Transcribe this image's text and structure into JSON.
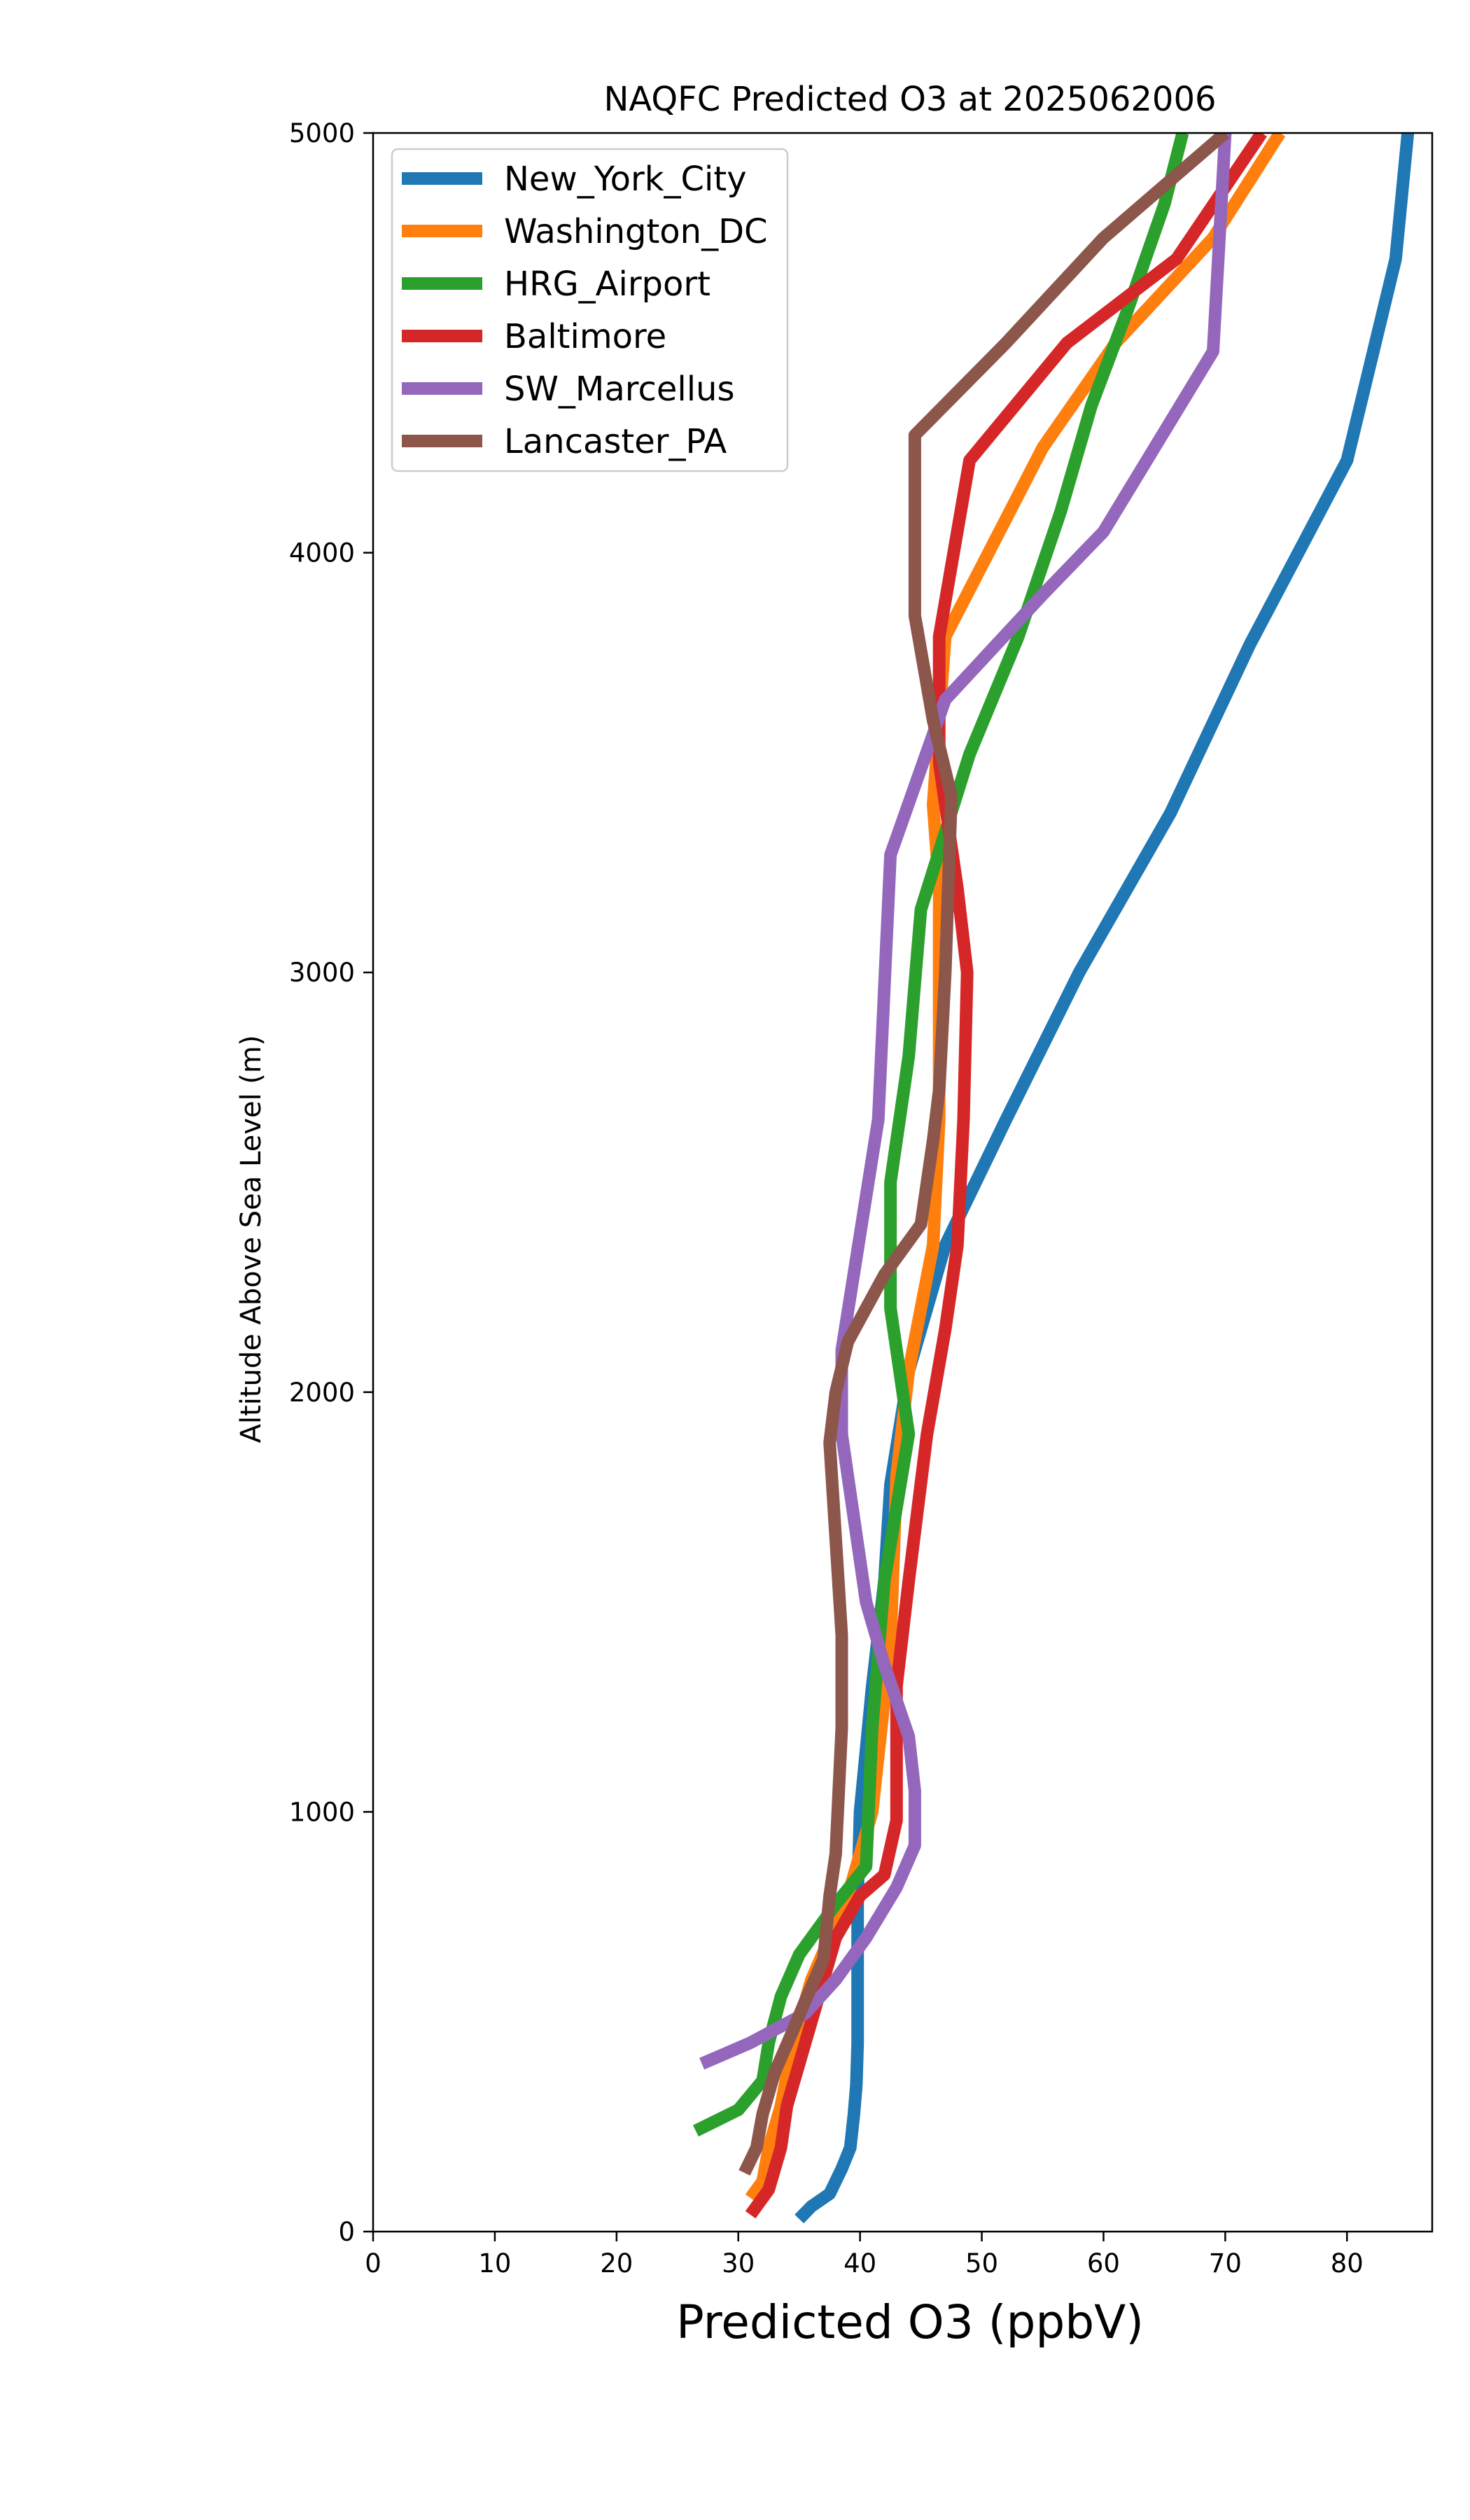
{
  "chart_data": {
    "type": "line",
    "title": "NAQFC Predicted O3 at 2025062006",
    "xlabel": "Predicted O3 (ppbV)",
    "ylabel": "Altitude Above Sea Level (m)",
    "xlim": [
      0,
      87
    ],
    "ylim": [
      0,
      5000
    ],
    "xticks": [
      0,
      10,
      20,
      30,
      40,
      50,
      60,
      70,
      80
    ],
    "yticks": [
      0,
      1000,
      2000,
      3000,
      4000,
      5000
    ],
    "grid": false,
    "legend": "top-left",
    "series": [
      {
        "name": "New_York_City",
        "color": "#1f77b4",
        "points": [
          [
            35,
            30
          ],
          [
            36,
            60
          ],
          [
            37.5,
            90
          ],
          [
            38.5,
            150
          ],
          [
            39.2,
            200
          ],
          [
            39.5,
            280
          ],
          [
            39.7,
            350
          ],
          [
            39.8,
            450
          ],
          [
            39.8,
            600
          ],
          [
            39.8,
            800
          ],
          [
            40,
            1000
          ],
          [
            41,
            1300
          ],
          [
            42,
            1550
          ],
          [
            42.5,
            1780
          ],
          [
            44,
            2050
          ],
          [
            47,
            2350
          ],
          [
            52,
            2650
          ],
          [
            58,
            3000
          ],
          [
            65.5,
            3380
          ],
          [
            72,
            3780
          ],
          [
            80,
            4220
          ],
          [
            84,
            4700
          ],
          [
            85,
            5000
          ]
        ]
      },
      {
        "name": "Washington_DC",
        "color": "#ff7f0e",
        "points": [
          [
            31,
            80
          ],
          [
            32,
            120
          ],
          [
            32.5,
            200
          ],
          [
            33.5,
            300
          ],
          [
            34.5,
            450
          ],
          [
            36,
            600
          ],
          [
            39,
            800
          ],
          [
            41,
            1000
          ],
          [
            42.5,
            1400
          ],
          [
            43,
            1800
          ],
          [
            44,
            2050
          ],
          [
            46,
            2350
          ],
          [
            46.5,
            2650
          ],
          [
            46.5,
            3000
          ],
          [
            46.5,
            3200
          ],
          [
            46,
            3400
          ],
          [
            47,
            3800
          ],
          [
            55,
            4250
          ],
          [
            61,
            4500
          ],
          [
            69,
            4750
          ],
          [
            74.5,
            5000
          ]
        ]
      },
      {
        "name": "HRG_Airport",
        "color": "#2ca02c",
        "points": [
          [
            26.5,
            240
          ],
          [
            30,
            290
          ],
          [
            32,
            360
          ],
          [
            32.5,
            450
          ],
          [
            33.5,
            560
          ],
          [
            35,
            660
          ],
          [
            38,
            780
          ],
          [
            40.5,
            870
          ],
          [
            41,
            1200
          ],
          [
            42,
            1550
          ],
          [
            44,
            1900
          ],
          [
            42.5,
            2200
          ],
          [
            42.5,
            2500
          ],
          [
            44,
            2800
          ],
          [
            45,
            3150
          ],
          [
            49,
            3520
          ],
          [
            53,
            3800
          ],
          [
            56.5,
            4100
          ],
          [
            59,
            4350
          ],
          [
            62,
            4580
          ],
          [
            65,
            4830
          ],
          [
            66.5,
            5000
          ]
        ]
      },
      {
        "name": "Baltimore",
        "color": "#d62728",
        "points": [
          [
            31,
            40
          ],
          [
            32.5,
            100
          ],
          [
            33.5,
            200
          ],
          [
            34,
            300
          ],
          [
            35,
            400
          ],
          [
            36.5,
            550
          ],
          [
            38,
            700
          ],
          [
            40,
            800
          ],
          [
            42,
            850
          ],
          [
            43,
            980
          ],
          [
            43,
            1300
          ],
          [
            44,
            1550
          ],
          [
            45.5,
            1900
          ],
          [
            47,
            2150
          ],
          [
            48,
            2350
          ],
          [
            48.5,
            2650
          ],
          [
            48.8,
            3000
          ],
          [
            48,
            3200
          ],
          [
            46.5,
            3500
          ],
          [
            46.5,
            3800
          ],
          [
            49,
            4220
          ],
          [
            57,
            4500
          ],
          [
            66,
            4700
          ],
          [
            73,
            5000
          ]
        ]
      },
      {
        "name": "SW_Marcellus",
        "color": "#9467bd",
        "points": [
          [
            27,
            400
          ],
          [
            31,
            450
          ],
          [
            35.5,
            520
          ],
          [
            38,
            600
          ],
          [
            40.5,
            700
          ],
          [
            43,
            820
          ],
          [
            44.5,
            920
          ],
          [
            44.5,
            1050
          ],
          [
            44,
            1180
          ],
          [
            42,
            1350
          ],
          [
            40.5,
            1500
          ],
          [
            39.5,
            1700
          ],
          [
            38.5,
            1900
          ],
          [
            38.5,
            2100
          ],
          [
            41.5,
            2650
          ],
          [
            42.5,
            3280
          ],
          [
            47,
            3650
          ],
          [
            55,
            3900
          ],
          [
            60,
            4050
          ],
          [
            69,
            4480
          ],
          [
            70,
            5000
          ]
        ]
      },
      {
        "name": "Lancaster_PA",
        "color": "#8c564b",
        "points": [
          [
            30.5,
            140
          ],
          [
            31.5,
            200
          ],
          [
            32,
            280
          ],
          [
            33,
            380
          ],
          [
            34.5,
            480
          ],
          [
            35.5,
            550
          ],
          [
            37,
            650
          ],
          [
            37.5,
            800
          ],
          [
            38,
            900
          ],
          [
            38.5,
            1200
          ],
          [
            38.5,
            1420
          ],
          [
            38,
            1650
          ],
          [
            37.5,
            1880
          ],
          [
            38,
            2000
          ],
          [
            39,
            2120
          ],
          [
            42,
            2280
          ],
          [
            45,
            2400
          ],
          [
            46,
            2600
          ],
          [
            46.5,
            2720
          ],
          [
            47,
            3000
          ],
          [
            47.5,
            3420
          ],
          [
            46,
            3600
          ],
          [
            44.5,
            3850
          ],
          [
            44.5,
            4280
          ],
          [
            52,
            4500
          ],
          [
            60,
            4750
          ],
          [
            70,
            5000
          ]
        ]
      }
    ]
  }
}
